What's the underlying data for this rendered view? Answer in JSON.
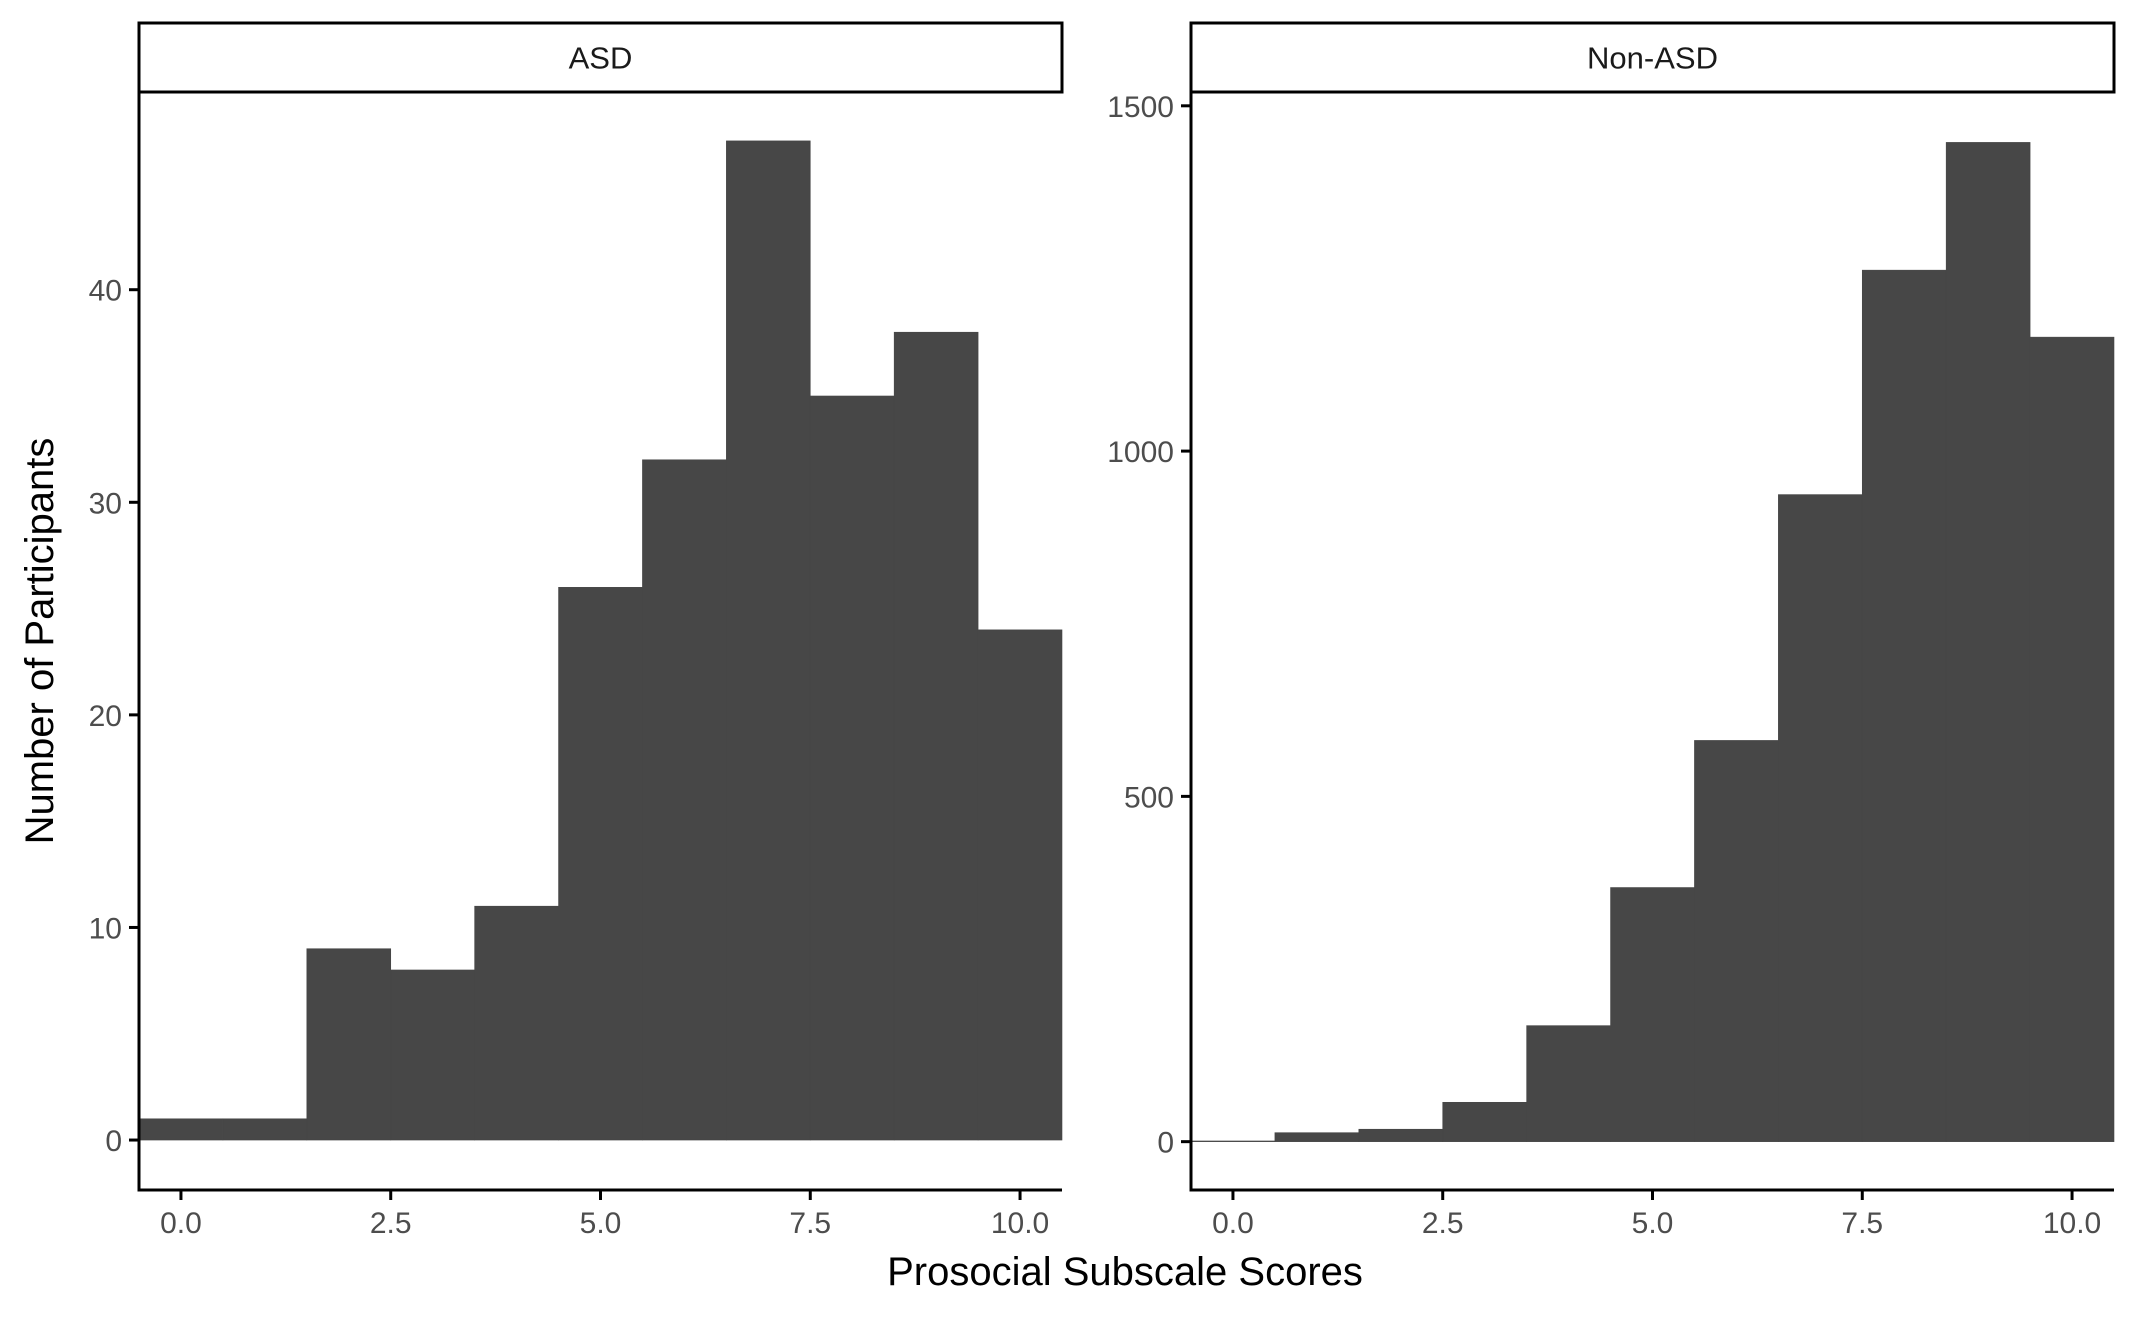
{
  "chart_data": {
    "type": "bar",
    "xlabel": "Prosocial Subscale Scores",
    "ylabel": "Number of Participants",
    "bar_color": "#474747",
    "axis_color": "#000000",
    "tick_label_color": "#4d4d4d",
    "grid": false,
    "x_ticks": [
      "0.0",
      "2.5",
      "5.0",
      "7.5",
      "10.0"
    ],
    "bin_centers": [
      0,
      1,
      2,
      3,
      4,
      5,
      6,
      7,
      8,
      9,
      10
    ],
    "bin_width": 1,
    "xlim": [
      -0.5,
      10.5
    ],
    "panels": [
      {
        "strip_label": "ASD",
        "values": [
          1,
          1,
          9,
          8,
          11,
          26,
          32,
          47,
          35,
          38,
          24
        ],
        "ylim": [
          -2.35,
          49.3
        ],
        "y_ticks": [
          "0",
          "10",
          "20",
          "30",
          "40"
        ]
      },
      {
        "strip_label": "Non-ASD",
        "values": [
          1,
          13,
          18,
          57,
          168,
          368,
          581,
          937,
          1262,
          1447,
          1165
        ],
        "ylim": [
          -70,
          1520
        ],
        "y_ticks": [
          "0",
          "500",
          "1000",
          "1500"
        ]
      }
    ]
  }
}
